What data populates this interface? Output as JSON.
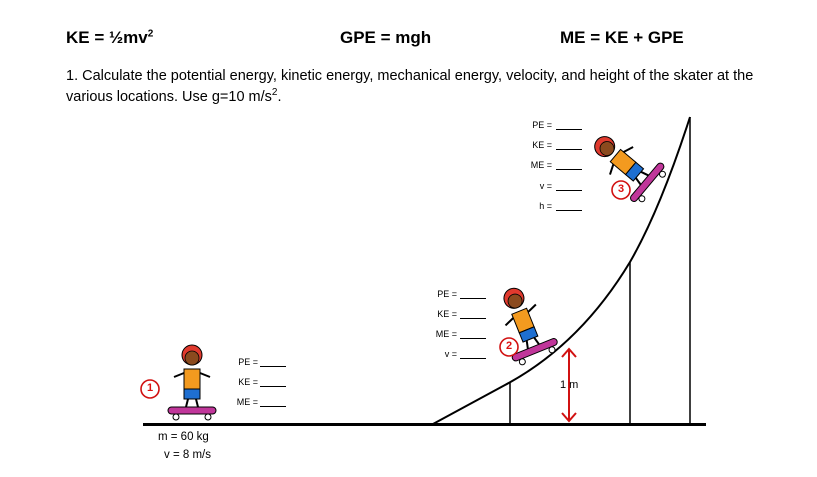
{
  "formulas": {
    "ke": {
      "base": "KE = ½mv",
      "sup": "2"
    },
    "gpe": "GPE = mgh",
    "me": "ME = KE + GPE"
  },
  "question": {
    "text": "1. Calculate the potential energy, kinetic energy, mechanical energy, velocity, and height of the skater at the various locations. Use g=10 m/s",
    "sup": "2",
    "end": "."
  },
  "positions": [
    {
      "marker": "1",
      "labels": [
        "PE =",
        "KE =",
        "ME ="
      ]
    },
    {
      "marker": "2",
      "labels": [
        "PE =",
        "KE =",
        "ME =",
        "v ="
      ]
    },
    {
      "marker": "3",
      "labels": [
        "PE =",
        "KE =",
        "ME =",
        "v =",
        "h ="
      ]
    }
  ],
  "given": {
    "mass": "m = 60 kg",
    "velocity": "v = 8 m/s"
  },
  "height_marker": "1 m",
  "colors": {
    "marker": "#d11111",
    "board": "#c0369a",
    "shirt": "#f39a1f",
    "helmet": "#e03a2e",
    "pants": "#1e6fd1"
  }
}
